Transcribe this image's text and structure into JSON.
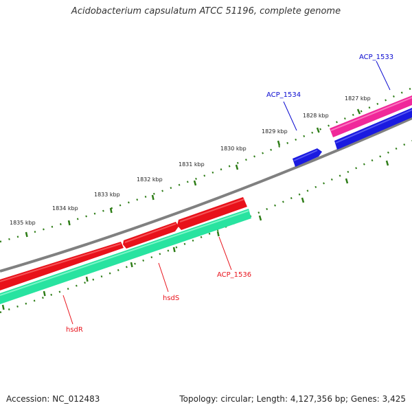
{
  "title": "Acidobacterium capsulatum ATCC 51196, complete genome",
  "footer": {
    "accession": "Accession: NC_012483",
    "topology": "Topology: circular; Length: 4,127,356 bp; Genes: 3,425"
  },
  "colors": {
    "backbone": "#808080",
    "tick": "#2e7d17",
    "gene_red": "#e8111a",
    "gene_teal": "#28e3a0",
    "gene_pink": "#f0289a",
    "gene_blue": "#1a1ae0",
    "label_red": "#e8111a",
    "label_blue": "#0a0ad0"
  },
  "scale_labels": [
    "1835 kbp",
    "1834 kbp",
    "1833 kbp",
    "1832 kbp",
    "1831 kbp",
    "1830 kbp",
    "1829 kbp",
    "1828 kbp",
    "1827 kbp"
  ],
  "gene_labels": [
    {
      "id": "hsdR",
      "text": "hsdR",
      "color": "red"
    },
    {
      "id": "hsdS",
      "text": "hsdS",
      "color": "red"
    },
    {
      "id": "acp1536",
      "text": "ACP_1536",
      "color": "red"
    },
    {
      "id": "acp1534",
      "text": "ACP_1534",
      "color": "blue"
    },
    {
      "id": "acp1533",
      "text": "ACP_1533",
      "color": "blue"
    }
  ]
}
